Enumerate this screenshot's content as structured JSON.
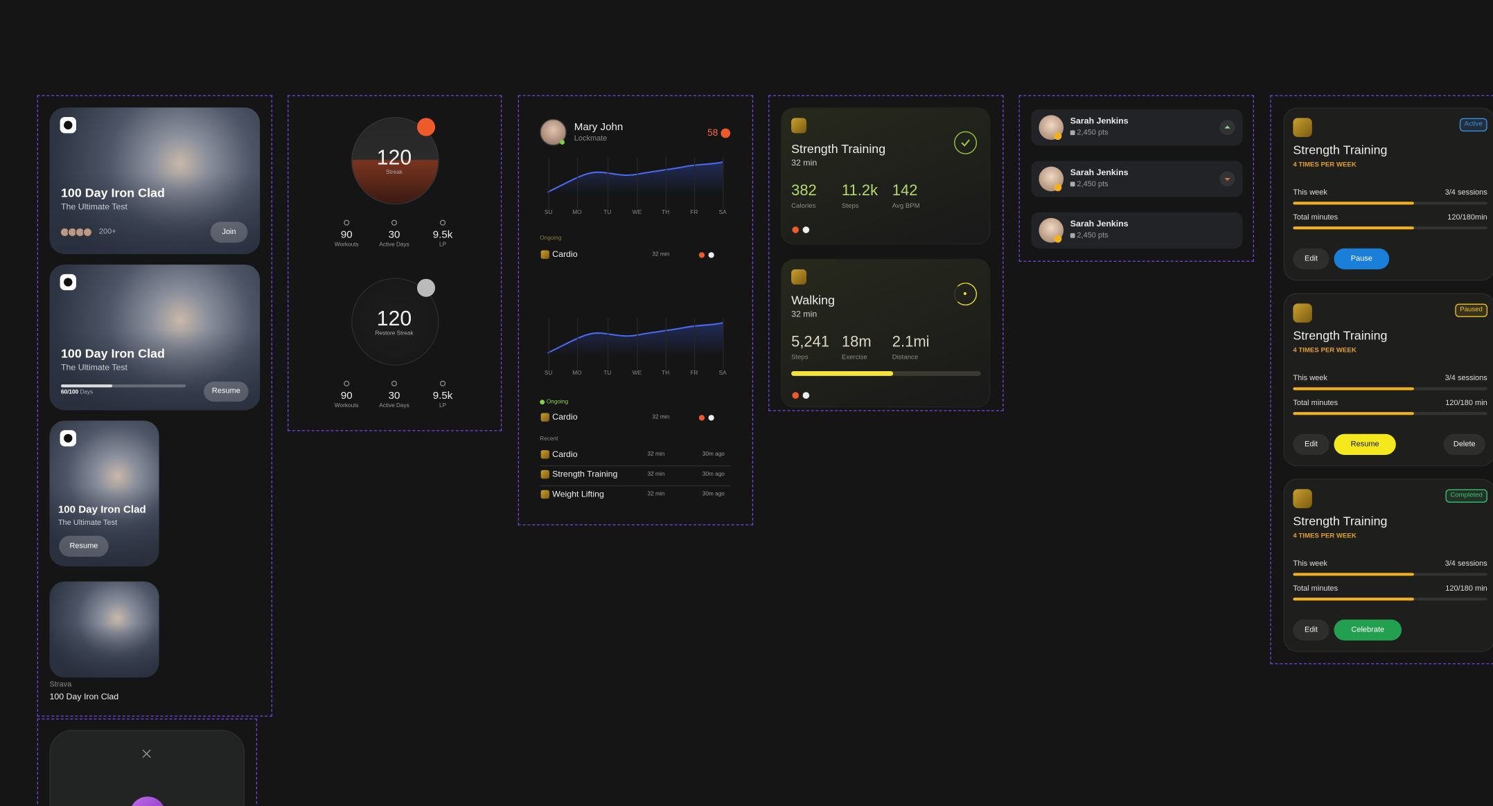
{
  "column1": {
    "cards": [
      {
        "title": "100 Day Iron Clad",
        "subtitle": "The Ultimate Test",
        "members": "200+",
        "button": "Join"
      },
      {
        "title": "100 Day Iron Clad",
        "subtitle": "The Ultimate Test",
        "progress": "60/100",
        "progress_unit": "Days",
        "button": "Resume"
      },
      {
        "title": "100 Day Iron Clad",
        "subtitle": "The Ultimate Test",
        "button": "Resume"
      }
    ],
    "strava": {
      "source": "Strava",
      "title": "100 Day Iron Clad"
    }
  },
  "streaks": [
    {
      "value": 120,
      "label": "Streak",
      "stats": [
        {
          "value": 90,
          "label": "Workouts"
        },
        {
          "value": 30,
          "label": "Active Days"
        },
        {
          "value": "9.5k",
          "label": "LP"
        }
      ]
    },
    {
      "value": 120,
      "label": "Restore Streak",
      "stats": [
        {
          "value": 90,
          "label": "Workouts"
        },
        {
          "value": 30,
          "label": "Active Days"
        },
        {
          "value": "9.5k",
          "label": "LP"
        }
      ]
    }
  ],
  "activity": {
    "user": {
      "name": "Mary John",
      "role": "Lockmate",
      "score": 58
    },
    "days": [
      "SU",
      "MO",
      "TU",
      "WE",
      "TH",
      "FR",
      "SA"
    ],
    "ongoing_label": "Ongoing",
    "ongoing": {
      "name": "Cardio",
      "duration": "32 min"
    },
    "recent_label": "Recent",
    "recent": [
      {
        "name": "Cardio",
        "duration": "32 min",
        "ago": "30m ago"
      },
      {
        "name": "Strength Training",
        "duration": "32 min",
        "ago": "30m ago"
      },
      {
        "name": "Weight Lifting",
        "duration": "32 min",
        "ago": "30m ago"
      }
    ]
  },
  "workouts": [
    {
      "title": "Strength Training",
      "duration": "32 min",
      "stats": [
        {
          "value": 382,
          "label": "Calories"
        },
        {
          "value": "11.2k",
          "label": "Steps"
        },
        {
          "value": 142,
          "label": "Avg BPM"
        }
      ]
    },
    {
      "title": "Walking",
      "duration": "32 min",
      "stats": [
        {
          "value": "5,241",
          "label": "Steps"
        },
        {
          "value": "18m",
          "label": "Exercise"
        },
        {
          "value": "2.1mi",
          "label": "Distance"
        }
      ]
    }
  ],
  "leaderboard": [
    {
      "name": "Sarah Jenkins",
      "points": "2,450 pts"
    },
    {
      "name": "Sarah Jenkins",
      "points": "2,450 pts"
    },
    {
      "name": "Sarah Jenkins",
      "points": "2,450 pts"
    }
  ],
  "plans": [
    {
      "status": "Active",
      "title": "Strength Training",
      "frequency": "4 TIMES PER WEEK",
      "rows": [
        {
          "label": "This week",
          "value": "3/4 sessions"
        },
        {
          "label": "Total minutes",
          "value": "120/180min"
        }
      ],
      "buttons": [
        "Edit",
        "Pause"
      ]
    },
    {
      "status": "Paused",
      "title": "Strength Training",
      "frequency": "4 TIMES PER WEEK",
      "rows": [
        {
          "label": "This week",
          "value": "3/4 sessions"
        },
        {
          "label": "Total minutes",
          "value": "120/180 min"
        }
      ],
      "buttons": [
        "Edit",
        "Resume",
        "Delete"
      ]
    },
    {
      "status": "Completed",
      "title": "Strength Training",
      "frequency": "4 TIMES PER WEEK",
      "rows": [
        {
          "label": "This week",
          "value": "3/4 sessions"
        },
        {
          "label": "Total minutes",
          "value": "120/180 min"
        }
      ],
      "buttons": [
        "Edit",
        "Celebrate"
      ]
    }
  ]
}
